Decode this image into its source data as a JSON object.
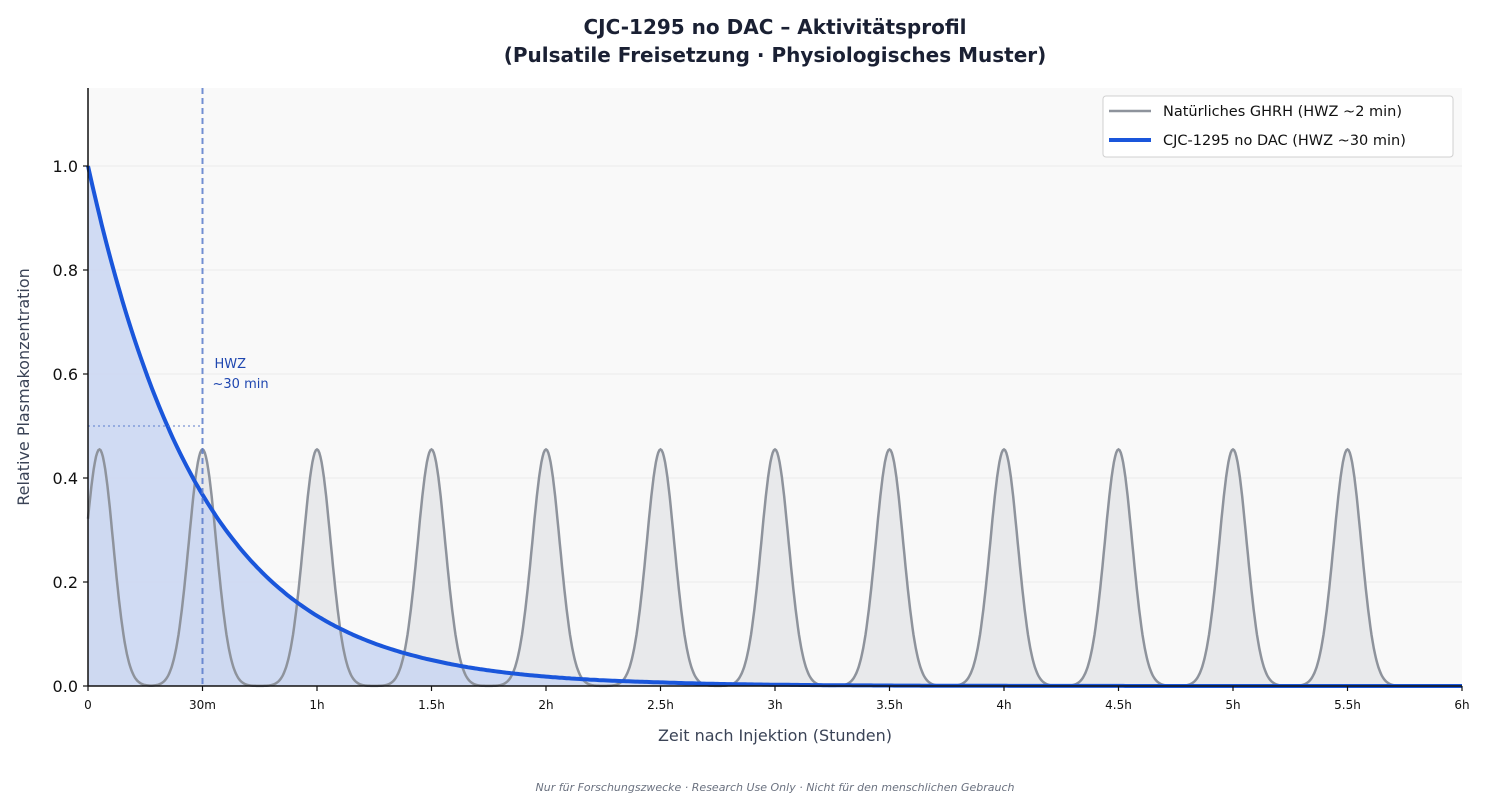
{
  "chart_data": {
    "type": "line",
    "title": "CJC-1295 no DAC – Aktivitätsprofil",
    "subtitle": "(Pulsatile Freisetzung · Physiologisches Muster)",
    "xlabel": "Zeit nach Injektion (Stunden)",
    "ylabel": "Relative Plasmakonzentration",
    "xlim": [
      0,
      6
    ],
    "ylim": [
      0,
      1.15
    ],
    "x_ticks": [
      0,
      0.5,
      1,
      1.5,
      2,
      2.5,
      3,
      3.5,
      4,
      4.5,
      5,
      5.5,
      6
    ],
    "x_tick_labels": [
      "0",
      "30m",
      "1h",
      "1.5h",
      "2h",
      "2.5h",
      "3h",
      "3.5h",
      "4h",
      "4.5h",
      "5h",
      "5.5h",
      "6h"
    ],
    "y_ticks": [
      0,
      0.2,
      0.4,
      0.6,
      0.8,
      1.0
    ],
    "y_tick_labels": [
      "0.0",
      "0.2",
      "0.4",
      "0.6",
      "0.8",
      "1.0"
    ],
    "grid": "horizontal",
    "legend_position": "top-right",
    "series": [
      {
        "name": "Natürliches GHRH (HWZ ~2 min)",
        "color": "#8e939c",
        "fill": "#e6e7e9",
        "style": "pulses",
        "peak_x": [
          0.05,
          0.5,
          1.0,
          1.5,
          2.0,
          2.5,
          3.0,
          3.5,
          4.0,
          4.5,
          5.0,
          5.5
        ],
        "peak_value": 0.455
      },
      {
        "name": "CJC-1295 no DAC (HWZ ~30 min)",
        "color": "#1a56db",
        "fill": "#c9d6f2",
        "style": "line",
        "x": [
          0,
          0.25,
          0.5,
          0.75,
          1.0,
          1.25,
          1.5,
          1.75,
          2.0,
          2.25,
          2.5,
          2.75,
          3.0,
          3.5,
          4.0,
          4.5,
          5.0,
          5.5,
          6.0
        ],
        "y": [
          1.0,
          0.607,
          0.368,
          0.223,
          0.135,
          0.082,
          0.05,
          0.03,
          0.018,
          0.011,
          0.007,
          0.004,
          0.0025,
          0.0009,
          0.0003,
          0.0001,
          5e-05,
          2e-05,
          1e-05
        ]
      }
    ],
    "annotations": {
      "half_life_x": 0.5,
      "half_life_level": 0.5,
      "label_line1": "HWZ",
      "label_line2": "~30 min",
      "color": "#5a7ccc"
    },
    "footer": "Nur für Forschungszwecke · Research Use Only · Nicht für den menschlichen Gebrauch"
  }
}
